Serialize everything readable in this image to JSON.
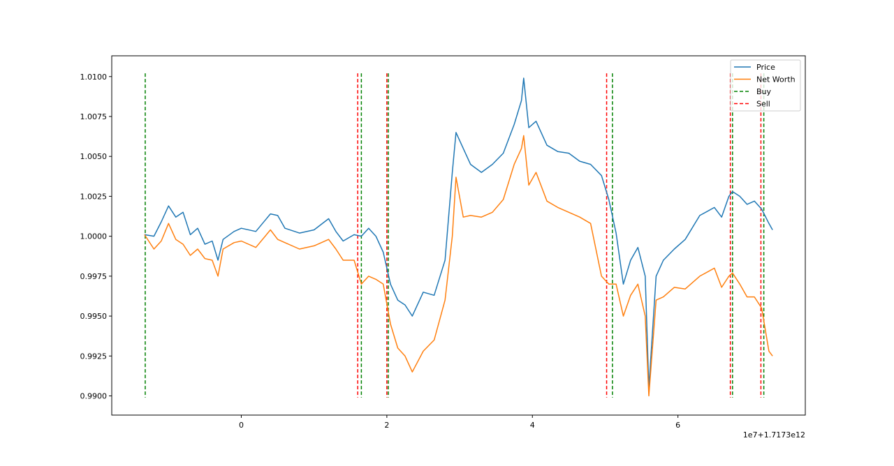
{
  "chart_data": {
    "type": "line",
    "title": "",
    "xlabel": "",
    "ylabel": "",
    "x_offset_label": "1e7+1.7173e12",
    "xlim": [
      -1.78,
      7.75
    ],
    "ylim": [
      0.9888,
      1.0113
    ],
    "x_ticks": [
      0,
      2,
      4,
      6
    ],
    "x_tick_labels": [
      "0",
      "2",
      "4",
      "6"
    ],
    "y_ticks": [
      0.99,
      0.9925,
      0.995,
      0.9975,
      1.0,
      1.0025,
      1.005,
      1.0075,
      1.01
    ],
    "y_tick_labels": [
      "0.9900",
      "0.9925",
      "0.9950",
      "0.9975",
      "1.0000",
      "1.0025",
      "1.0050",
      "1.0075",
      "1.0100"
    ],
    "grid": false,
    "legend": {
      "position": "top-right",
      "entries": [
        "Price",
        "Net Worth",
        "Buy",
        "Sell"
      ]
    },
    "colors": {
      "price": "#1f77b4",
      "net_worth": "#ff7f0e",
      "buy": "#008000",
      "sell": "#ff0000"
    },
    "series": [
      {
        "name": "Price",
        "x": [
          -1.33,
          -1.2,
          -1.1,
          -1.0,
          -0.9,
          -0.8,
          -0.7,
          -0.6,
          -0.5,
          -0.4,
          -0.32,
          -0.25,
          -0.1,
          0.0,
          0.2,
          0.4,
          0.5,
          0.6,
          0.8,
          1.0,
          1.2,
          1.3,
          1.4,
          1.55,
          1.65,
          1.75,
          1.85,
          1.95,
          2.05,
          2.15,
          2.25,
          2.35,
          2.5,
          2.65,
          2.8,
          2.9,
          2.95,
          3.05,
          3.15,
          3.3,
          3.45,
          3.6,
          3.75,
          3.85,
          3.88,
          3.95,
          4.05,
          4.2,
          4.35,
          4.5,
          4.65,
          4.8,
          4.95,
          5.05,
          5.15,
          5.25,
          5.35,
          5.45,
          5.55,
          5.6,
          5.7,
          5.8,
          5.95,
          6.1,
          6.3,
          6.5,
          6.6,
          6.7,
          6.75,
          6.85,
          6.95,
          7.05,
          7.15,
          7.25,
          7.3
        ],
        "y": [
          1.0001,
          1.0,
          1.0009,
          1.0019,
          1.0012,
          1.0015,
          1.0001,
          1.0005,
          0.9995,
          0.9997,
          0.9985,
          0.9998,
          1.0003,
          1.0005,
          1.0003,
          1.0014,
          1.0013,
          1.0005,
          1.0002,
          1.0004,
          1.0011,
          1.0003,
          0.9997,
          1.0001,
          1.0,
          1.0005,
          1.0,
          0.999,
          0.997,
          0.996,
          0.9957,
          0.995,
          0.9965,
          0.9963,
          0.9985,
          1.004,
          1.0065,
          1.0055,
          1.0045,
          1.004,
          1.0045,
          1.0052,
          1.007,
          1.0085,
          1.0099,
          1.0068,
          1.0072,
          1.0057,
          1.0053,
          1.0052,
          1.0047,
          1.0045,
          1.0038,
          1.0023,
          1.0002,
          0.997,
          0.9985,
          0.9993,
          0.9975,
          0.9905,
          0.9975,
          0.9985,
          0.9992,
          0.9998,
          1.0013,
          1.0018,
          1.0012,
          1.0025,
          1.0028,
          1.0025,
          1.002,
          1.0022,
          1.0017,
          1.0008,
          1.0004
        ]
      },
      {
        "name": "Net Worth",
        "x": [
          -1.33,
          -1.2,
          -1.1,
          -1.0,
          -0.9,
          -0.8,
          -0.7,
          -0.6,
          -0.5,
          -0.4,
          -0.32,
          -0.25,
          -0.1,
          0.0,
          0.2,
          0.4,
          0.5,
          0.6,
          0.8,
          1.0,
          1.2,
          1.3,
          1.4,
          1.55,
          1.65,
          1.75,
          1.85,
          1.95,
          2.05,
          2.15,
          2.25,
          2.35,
          2.5,
          2.65,
          2.8,
          2.9,
          2.95,
          3.05,
          3.15,
          3.3,
          3.45,
          3.6,
          3.75,
          3.85,
          3.88,
          3.95,
          4.05,
          4.2,
          4.35,
          4.5,
          4.65,
          4.8,
          4.95,
          5.05,
          5.15,
          5.25,
          5.35,
          5.45,
          5.55,
          5.6,
          5.7,
          5.8,
          5.95,
          6.1,
          6.3,
          6.5,
          6.6,
          6.7,
          6.75,
          6.85,
          6.95,
          7.05,
          7.15,
          7.25,
          7.3
        ],
        "y": [
          1.0001,
          0.9992,
          0.9997,
          1.0008,
          0.9998,
          0.9995,
          0.9988,
          0.9992,
          0.9986,
          0.9985,
          0.9975,
          0.9992,
          0.9996,
          0.9997,
          0.9993,
          1.0004,
          0.9998,
          0.9996,
          0.9992,
          0.9994,
          0.9998,
          0.9992,
          0.9985,
          0.9985,
          0.997,
          0.9975,
          0.9973,
          0.997,
          0.9945,
          0.993,
          0.9925,
          0.9915,
          0.9928,
          0.9935,
          0.996,
          1.0,
          1.0037,
          1.0012,
          1.0013,
          1.0012,
          1.0015,
          1.0023,
          1.0045,
          1.0055,
          1.0063,
          1.0032,
          1.004,
          1.0022,
          1.0018,
          1.0015,
          1.0012,
          1.0008,
          0.9975,
          0.997,
          0.997,
          0.995,
          0.9963,
          0.997,
          0.995,
          0.99,
          0.996,
          0.9962,
          0.9968,
          0.9967,
          0.9975,
          0.998,
          0.9968,
          0.9975,
          0.9977,
          0.997,
          0.9962,
          0.9962,
          0.9955,
          0.9928,
          0.9925
        ]
      }
    ],
    "buy_x": [
      -1.32,
      1.65,
      2.02,
      5.1,
      6.75,
      7.18
    ],
    "sell_x": [
      1.6,
      2.0,
      5.02,
      6.72,
      7.14
    ]
  }
}
